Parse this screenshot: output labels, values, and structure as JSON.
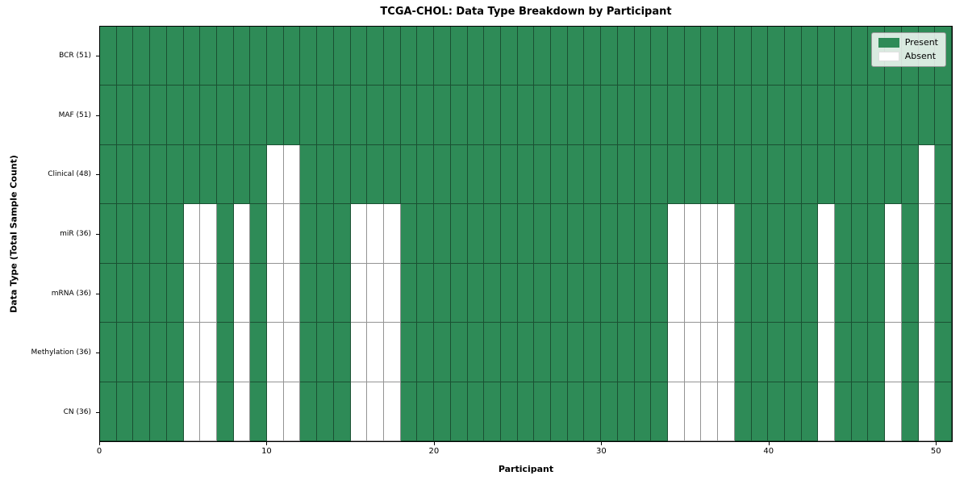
{
  "chart_data": {
    "type": "heatmap",
    "title": "TCGA-CHOL: Data Type Breakdown by Participant",
    "xlabel": "Participant",
    "ylabel": "Data Type (Total Sample Count)",
    "n_participants": 51,
    "x_range": [
      0,
      51
    ],
    "x_ticks": [
      0,
      10,
      20,
      30,
      40,
      50
    ],
    "grid": true,
    "rows": [
      {
        "label": "BCR (51)",
        "present_count": 51,
        "absent_participants": []
      },
      {
        "label": "MAF (51)",
        "present_count": 51,
        "absent_participants": []
      },
      {
        "label": "Clinical (48)",
        "present_count": 48,
        "absent_participants": [
          10,
          11,
          49
        ]
      },
      {
        "label": "miR (36)",
        "present_count": 36,
        "absent_participants": [
          5,
          6,
          8,
          10,
          11,
          15,
          16,
          17,
          34,
          35,
          36,
          37,
          43,
          47,
          49
        ]
      },
      {
        "label": "mRNA (36)",
        "present_count": 36,
        "absent_participants": [
          5,
          6,
          8,
          10,
          11,
          15,
          16,
          17,
          34,
          35,
          36,
          37,
          43,
          47,
          49
        ]
      },
      {
        "label": "Methylation (36)",
        "present_count": 36,
        "absent_participants": [
          5,
          6,
          8,
          10,
          11,
          15,
          16,
          17,
          34,
          35,
          36,
          37,
          43,
          47,
          49
        ]
      },
      {
        "label": "CN (36)",
        "present_count": 36,
        "absent_participants": [
          5,
          6,
          8,
          10,
          11,
          15,
          16,
          17,
          34,
          35,
          36,
          37,
          43,
          47,
          49
        ]
      }
    ],
    "legend": {
      "position": "upper right",
      "entries": [
        {
          "label": "Present",
          "color": "#2e8b57"
        },
        {
          "label": "Absent",
          "color": "#ffffff"
        }
      ]
    },
    "colors": {
      "present": "#2e8b57",
      "absent": "#ffffff",
      "cell_edge": "rgba(0,0,0,0.42)",
      "spine": "#000000"
    }
  }
}
